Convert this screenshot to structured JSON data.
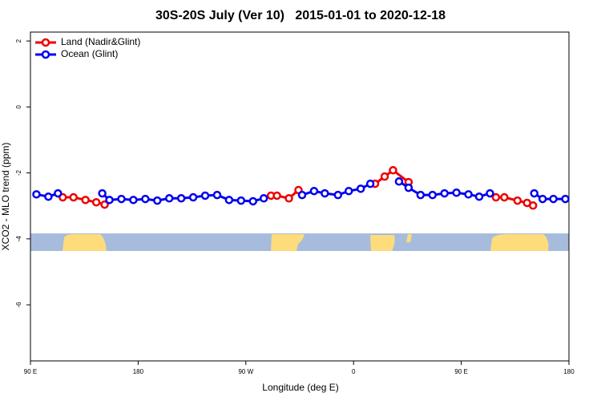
{
  "chart_data": {
    "type": "line",
    "title": "30S-20S July (Ver 10)   2015-01-01 to 2020-12-18",
    "x_label": "Longitude (deg E)",
    "y_label": "XCO2 - MLO trend (ppm)",
    "xlim": [
      90,
      540
    ],
    "ylim": [
      -7.7,
      2.27
    ],
    "xticks": [
      {
        "value": 90,
        "label": "90 E"
      },
      {
        "value": 180,
        "label": "180"
      },
      {
        "value": 270,
        "label": "90 W"
      },
      {
        "value": 360,
        "label": "0"
      },
      {
        "value": 450,
        "label": "90 E"
      },
      {
        "value": 540,
        "label": "180"
      }
    ],
    "yticks": [
      2,
      0,
      -2,
      -4,
      -6
    ],
    "legend": "top-left",
    "series": [
      {
        "name": "Land (Nadir&Glint)",
        "color": "#ee0000",
        "x": [
          117,
          126,
          136,
          145,
          152,
          null,
          291,
          296,
          306,
          314,
          null,
          378,
          386,
          393,
          406,
          null,
          479,
          486,
          497,
          505,
          510
        ],
        "values": [
          -2.74,
          -2.74,
          -2.82,
          -2.89,
          -2.96,
          null,
          -2.69,
          -2.69,
          -2.77,
          -2.52,
          null,
          -2.33,
          -2.11,
          -1.92,
          -2.28,
          null,
          -2.74,
          -2.74,
          -2.84,
          -2.91,
          -2.99
        ]
      },
      {
        "name": "Ocean (Glint)",
        "color": "#0000ee",
        "x": [
          95,
          105,
          113,
          null,
          150,
          156,
          166,
          176,
          186,
          196,
          206,
          216,
          226,
          236,
          246,
          256,
          266,
          276,
          285,
          null,
          317,
          327,
          336,
          347,
          356,
          366,
          374,
          null,
          398,
          406,
          416,
          426,
          436,
          446,
          456,
          465,
          474,
          null,
          511,
          518,
          527,
          537
        ],
        "values": [
          -2.65,
          -2.72,
          -2.62,
          null,
          -2.62,
          -2.82,
          -2.79,
          -2.82,
          -2.79,
          -2.84,
          -2.77,
          -2.77,
          -2.74,
          -2.69,
          -2.67,
          -2.82,
          -2.84,
          -2.86,
          -2.77,
          null,
          -2.67,
          -2.55,
          -2.62,
          -2.67,
          -2.55,
          -2.48,
          -2.33,
          null,
          -2.26,
          -2.45,
          -2.67,
          -2.67,
          -2.62,
          -2.6,
          -2.65,
          -2.72,
          -2.62,
          null,
          -2.62,
          -2.79,
          -2.79,
          -2.79
        ]
      }
    ]
  }
}
